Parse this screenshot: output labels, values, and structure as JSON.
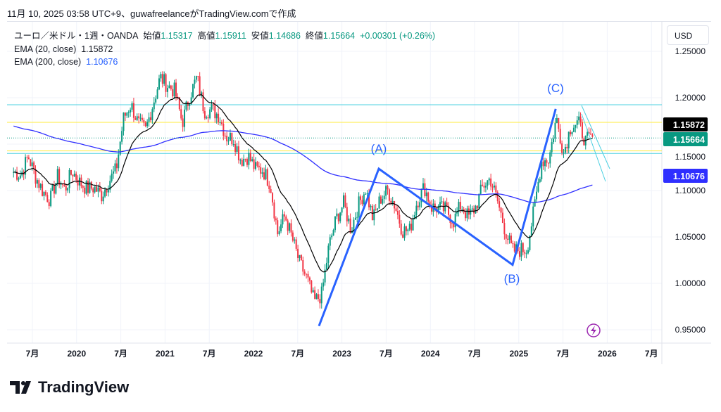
{
  "caption": "11月 10, 2025 03:58 UTC+9、guwafreelanceがTradingView.comで作成",
  "legend": {
    "symbol": "ユーロ／米ドル・1週・OANDA",
    "open_label": "始値",
    "open": "1.15317",
    "high_label": "高値",
    "high": "1.15911",
    "low_label": "安値",
    "low": "1.14686",
    "close_label": "終値",
    "close": "1.15664",
    "change": "+0.00301 (+0.26%)",
    "ema20_label": "EMA (20, close)",
    "ema20": "1.15872",
    "ema200_label": "EMA (200, close)",
    "ema200": "1.10676"
  },
  "currency": "USD",
  "logo": "TradingView",
  "colors": {
    "up": "#089981",
    "down": "#f23645",
    "ema20": "#000000",
    "ema200": "#2f2fff",
    "wave": "#2962ff",
    "cyan": "#4dd0e1",
    "yellow": "#ffeb3b"
  },
  "chart_data": {
    "type": "candlestick",
    "ylim": [
      0.93,
      1.265
    ],
    "y_ticks": [
      "1.25000",
      "1.20000",
      "1.15000",
      "1.10000",
      "1.05000",
      "1.00000",
      "0.95000"
    ],
    "x_ticks": [
      "7月",
      "2020",
      "7月",
      "2021",
      "7月",
      "2022",
      "7月",
      "2023",
      "7月",
      "2024",
      "7月",
      "2025",
      "7月",
      "2026",
      "7月"
    ],
    "monthly_close_start": "2019-04",
    "monthly_close": [
      1.12,
      1.117,
      1.137,
      1.115,
      1.099,
      1.09,
      1.115,
      1.101,
      1.121,
      1.109,
      1.102,
      1.103,
      1.095,
      1.11,
      1.123,
      1.178,
      1.193,
      1.172,
      1.165,
      1.193,
      1.222,
      1.213,
      1.207,
      1.173,
      1.202,
      1.222,
      1.186,
      1.187,
      1.181,
      1.158,
      1.156,
      1.133,
      1.137,
      1.123,
      1.122,
      1.107,
      1.054,
      1.073,
      1.048,
      1.022,
      1.005,
      0.98,
      0.988,
      1.04,
      1.07,
      1.086,
      1.058,
      1.084,
      1.102,
      1.069,
      1.091,
      1.1,
      1.084,
      1.057,
      1.057,
      1.088,
      1.104,
      1.082,
      1.081,
      1.079,
      1.067,
      1.085,
      1.071,
      1.082,
      1.105,
      1.113,
      1.088,
      1.058,
      1.035,
      1.036,
      1.037,
      1.081,
      1.132,
      1.134,
      1.178,
      1.141,
      1.17,
      1.173,
      1.153,
      1.157
    ],
    "price_labels": [
      {
        "text": "1.15872",
        "value": 1.15872,
        "color": "#000000"
      },
      {
        "text": "1.15664",
        "value": 1.15664,
        "color": "#089981"
      },
      {
        "text": "1.10676",
        "value": 1.10676,
        "color": "#2f2fff"
      }
    ],
    "horizontal_lines": [
      {
        "value": 1.1924,
        "color": "#4dd0e1"
      },
      {
        "value": 1.1735,
        "color": "#ffeb3b"
      },
      {
        "value": 1.1427,
        "color": "#ffeb3b"
      },
      {
        "value": 1.14,
        "color": "#4dd0e1"
      }
    ],
    "wave": [
      {
        "t": 2022.72,
        "p": 0.954
      },
      {
        "t": 2023.4,
        "p": 1.1235
      },
      {
        "t": 2024.92,
        "p": 1.02
      },
      {
        "t": 2025.41,
        "p": 1.188
      }
    ],
    "wave_labels": [
      "(A)",
      "(B)",
      "(C)"
    ]
  }
}
